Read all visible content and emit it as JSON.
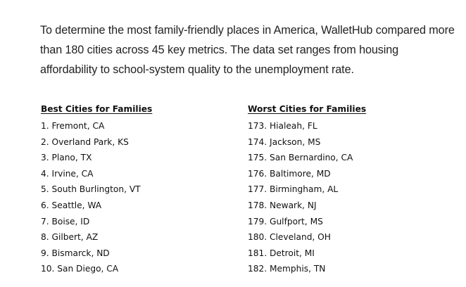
{
  "intro": {
    "text": "To determine the most family-friendly places in America, WalletHub compared more than 180 cities across 45 key metrics. The data set ranges from housing affordability to school-system quality to the unemployment rate."
  },
  "best": {
    "heading": "Best Cities for Families",
    "items": [
      "1. Fremont, CA",
      "2. Overland Park, KS",
      "3. Plano, TX",
      "4. Irvine, CA",
      "5. South Burlington, VT",
      "6. Seattle, WA",
      "7. Boise, ID",
      "8. Gilbert, AZ",
      "9. Bismarck, ND",
      "10. San Diego, CA"
    ]
  },
  "worst": {
    "heading": "Worst Cities for Families",
    "items": [
      "173. Hialeah, FL",
      "174. Jackson, MS",
      "175. San Bernardino, CA",
      "176. Baltimore, MD",
      "177. Birmingham, AL",
      "178. Newark, NJ",
      "179. Gulfport, MS",
      "180. Cleveland, OH",
      "181. Detroit, MI",
      "182. Memphis, TN"
    ]
  }
}
